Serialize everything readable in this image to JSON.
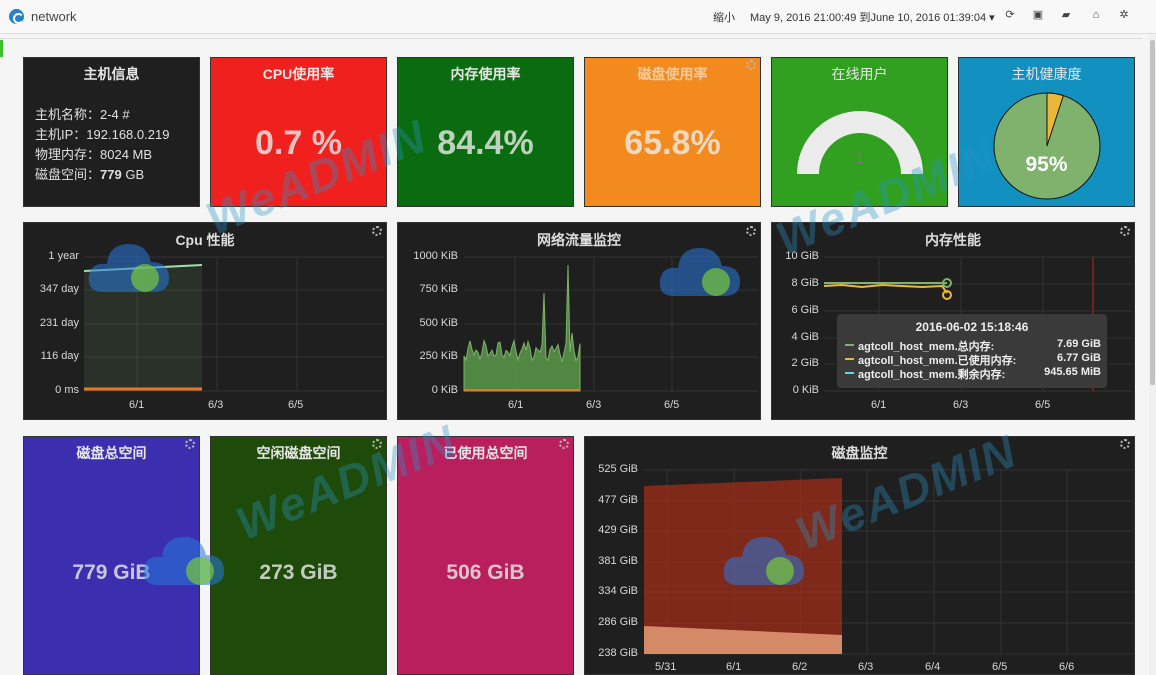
{
  "header": {
    "title": "network",
    "zoom_label": "缩小",
    "time_range": "May 9, 2016 21:00:49 到June 10, 2016 01:39:04 ▾"
  },
  "host_info": {
    "title": "主机信息",
    "name_line": "主机名称：2-4 #",
    "ip_line": "主机IP：192.168.0.219",
    "mem_line": "物理内存：8024 MB",
    "disk_label": "磁盘空间：",
    "disk_value": "779",
    "disk_unit": "GB"
  },
  "stats": {
    "cpu": {
      "title": "CPU使用率",
      "value": "0.7 %",
      "color": "#f0201e"
    },
    "mem": {
      "title": "内存使用率",
      "value": "84.4%",
      "color": "#0b6b10"
    },
    "disk": {
      "title": "磁盘使用率",
      "value": "65.8%",
      "color": "#f28a1e"
    },
    "online": {
      "title": "在线用户",
      "value": "1",
      "color": "#31a020"
    },
    "health": {
      "title": "主机健康度",
      "value": "95%",
      "color": "#1290c0",
      "health_fraction": 0.95
    }
  },
  "cpu_chart": {
    "title": "Cpu 性能",
    "y_ticks": [
      "1 year",
      "347 day",
      "231 day",
      "116 day",
      "0 ms"
    ],
    "x_ticks": [
      "6/1",
      "6/3",
      "6/5"
    ]
  },
  "net_chart": {
    "title": "网络流量监控",
    "y_ticks": [
      "1000 KiB",
      "750 KiB",
      "500 KiB",
      "250 KiB",
      "0 KiB"
    ],
    "x_ticks": [
      "6/1",
      "6/3",
      "6/5"
    ]
  },
  "mem_chart": {
    "title": "内存性能",
    "y_ticks": [
      "10 GiB",
      "8 GiB",
      "6 GiB",
      "4 GiB",
      "2 GiB",
      "0 KiB"
    ],
    "x_ticks": [
      "6/1",
      "6/3",
      "6/5"
    ],
    "tooltip": {
      "time": "2016-06-02 15:18:46",
      "rows": [
        {
          "name": "agtcoll_host_mem.总内存:",
          "value": "7.69 GiB",
          "color": "#7eb26d"
        },
        {
          "name": "agtcoll_host_mem.已使用内存:",
          "value": "6.77 GiB",
          "color": "#eab839"
        },
        {
          "name": "agtcoll_host_mem.剩余内存:",
          "value": "945.65 MiB",
          "color": "#6ed0e0"
        }
      ]
    }
  },
  "disk_total": {
    "title": "磁盘总空间",
    "value": "779 GiB",
    "color": "#3b2fb0"
  },
  "disk_free": {
    "title": "空闲磁盘空间",
    "value": "273 GiB",
    "color": "#1e4a0a"
  },
  "disk_used": {
    "title": "已使用总空间",
    "value": "506 GiB",
    "color": "#b81f5c"
  },
  "disk_chart": {
    "title": "磁盘监控",
    "y_ticks": [
      "525 GiB",
      "477 GiB",
      "429 GiB",
      "381 GiB",
      "334 GiB",
      "286 GiB",
      "238 GiB"
    ],
    "x_ticks": [
      "5/31",
      "6/1",
      "6/2",
      "6/3",
      "6/4",
      "6/5",
      "6/6"
    ]
  },
  "watermark": "WeADMIN"
}
